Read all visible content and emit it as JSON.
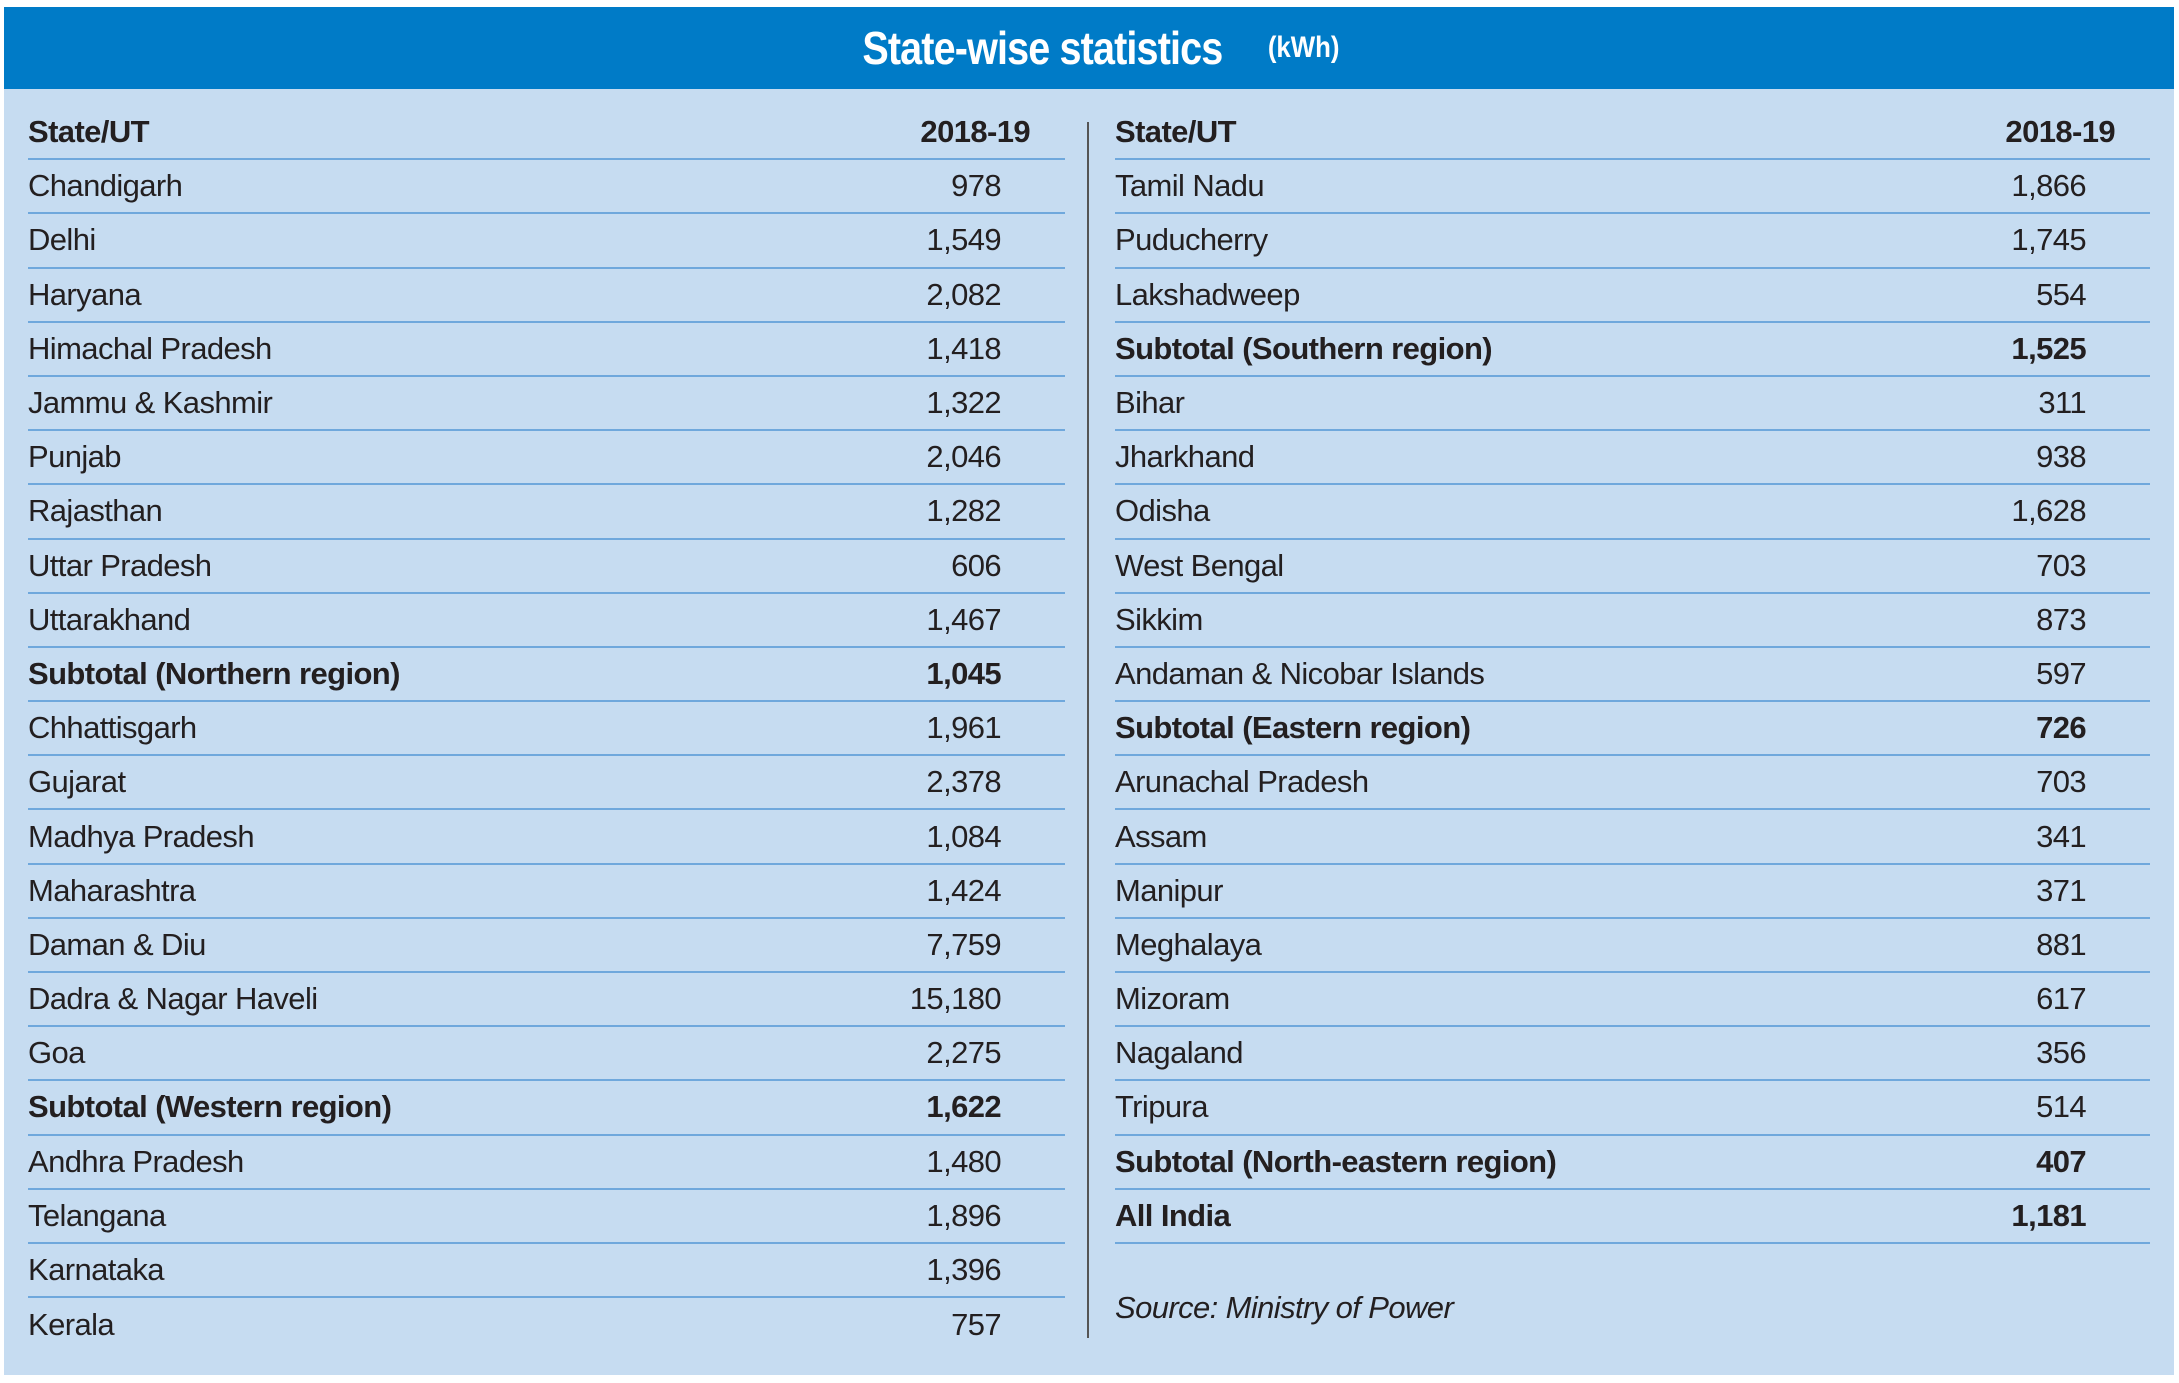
{
  "header": {
    "title": "State-wise statistics",
    "unit": "(kWh)"
  },
  "columns": {
    "state": "State/UT",
    "year": "2018-19"
  },
  "left_rows": [
    {
      "state": "Chandigarh",
      "value": "978",
      "bold": false
    },
    {
      "state": "Delhi",
      "value": "1,549",
      "bold": false
    },
    {
      "state": "Haryana",
      "value": "2,082",
      "bold": false
    },
    {
      "state": "Himachal Pradesh",
      "value": "1,418",
      "bold": false
    },
    {
      "state": "Jammu & Kashmir",
      "value": "1,322",
      "bold": false
    },
    {
      "state": "Punjab",
      "value": "2,046",
      "bold": false
    },
    {
      "state": "Rajasthan",
      "value": "1,282",
      "bold": false
    },
    {
      "state": "Uttar Pradesh",
      "value": "606",
      "bold": false
    },
    {
      "state": "Uttarakhand",
      "value": "1,467",
      "bold": false
    },
    {
      "state": "Subtotal (Northern region)",
      "value": "1,045",
      "bold": true
    },
    {
      "state": "Chhattisgarh",
      "value": "1,961",
      "bold": false
    },
    {
      "state": "Gujarat",
      "value": "2,378",
      "bold": false
    },
    {
      "state": "Madhya Pradesh",
      "value": "1,084",
      "bold": false
    },
    {
      "state": "Maharashtra",
      "value": "1,424",
      "bold": false
    },
    {
      "state": "Daman & Diu",
      "value": "7,759",
      "bold": false
    },
    {
      "state": "Dadra & Nagar Haveli",
      "value": "15,180",
      "bold": false
    },
    {
      "state": "Goa",
      "value": "2,275",
      "bold": false
    },
    {
      "state": "Subtotal (Western region)",
      "value": "1,622",
      "bold": true
    },
    {
      "state": "Andhra Pradesh",
      "value": "1,480",
      "bold": false
    },
    {
      "state": "Telangana",
      "value": "1,896",
      "bold": false
    },
    {
      "state": "Karnataka",
      "value": "1,396",
      "bold": false
    },
    {
      "state": "Kerala",
      "value": "757",
      "bold": false
    }
  ],
  "right_rows": [
    {
      "state": "Tamil Nadu",
      "value": "1,866",
      "bold": false
    },
    {
      "state": "Puducherry",
      "value": "1,745",
      "bold": false
    },
    {
      "state": "Lakshadweep",
      "value": "554",
      "bold": false
    },
    {
      "state": "Subtotal (Southern region)",
      "value": "1,525",
      "bold": true
    },
    {
      "state": "Bihar",
      "value": "311",
      "bold": false
    },
    {
      "state": "Jharkhand",
      "value": "938",
      "bold": false
    },
    {
      "state": "Odisha",
      "value": "1,628",
      "bold": false
    },
    {
      "state": "West Bengal",
      "value": "703",
      "bold": false
    },
    {
      "state": "Sikkim",
      "value": "873",
      "bold": false
    },
    {
      "state": "Andaman & Nicobar Islands",
      "value": "597",
      "bold": false
    },
    {
      "state": "Subtotal (Eastern region)",
      "value": "726",
      "bold": true
    },
    {
      "state": "Arunachal Pradesh",
      "value": "703",
      "bold": false
    },
    {
      "state": "Assam",
      "value": "341",
      "bold": false
    },
    {
      "state": "Manipur",
      "value": "371",
      "bold": false
    },
    {
      "state": "Meghalaya",
      "value": "881",
      "bold": false
    },
    {
      "state": "Mizoram",
      "value": "617",
      "bold": false
    },
    {
      "state": "Nagaland",
      "value": "356",
      "bold": false
    },
    {
      "state": "Tripura",
      "value": "514",
      "bold": false
    },
    {
      "state": "Subtotal (North-eastern region)",
      "value": "407",
      "bold": true
    },
    {
      "state": "All India",
      "value": "1,181",
      "bold": true
    }
  ],
  "source": "Source: Ministry of Power",
  "colors": {
    "banner": "#007bc7",
    "panel": "#c6dcf1",
    "rule": "#6fa8dc"
  }
}
